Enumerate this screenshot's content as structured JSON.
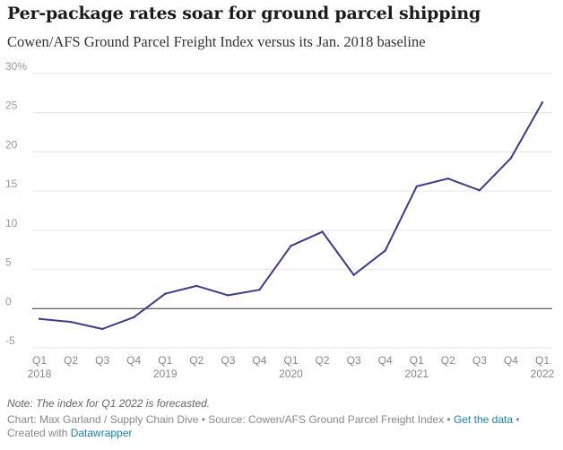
{
  "header": {
    "title": "Per-package rates soar for ground parcel shipping",
    "subtitle": "Cowen/AFS Ground Parcel Freight Index versus its Jan. 2018 baseline"
  },
  "chart_data": {
    "type": "line",
    "title": "Per-package rates soar for ground parcel shipping",
    "subtitle": "Cowen/AFS Ground Parcel Freight Index versus its Jan. 2018 baseline",
    "xlabel": "",
    "ylabel": "",
    "categories": [
      "Q1 2018",
      "Q2 2018",
      "Q3 2018",
      "Q4 2018",
      "Q1 2019",
      "Q2 2019",
      "Q3 2019",
      "Q4 2019",
      "Q1 2020",
      "Q2 2020",
      "Q3 2020",
      "Q4 2020",
      "Q1 2021",
      "Q2 2021",
      "Q3 2021",
      "Q4 2021",
      "Q1 2022"
    ],
    "series": [
      {
        "values": [
          -1.3,
          -1.7,
          -2.6,
          -1.1,
          1.9,
          2.9,
          1.7,
          2.4,
          8.0,
          9.8,
          4.3,
          7.4,
          15.6,
          16.6,
          15.1,
          19.2,
          26.3
        ]
      }
    ],
    "ylim": [
      -5,
      30
    ],
    "y_ticks": [
      -5,
      0,
      5,
      10,
      15,
      20,
      25,
      30
    ],
    "y_tick_labels": [
      "-5",
      "0",
      "5",
      "10",
      "15",
      "20",
      "25",
      "30%"
    ],
    "x_tick_quarters": [
      "Q1",
      "Q2",
      "Q3",
      "Q4",
      "Q1",
      "Q2",
      "Q3",
      "Q4",
      "Q1",
      "Q2",
      "Q3",
      "Q4",
      "Q1",
      "Q2",
      "Q3",
      "Q4",
      "Q1"
    ],
    "x_tick_years": [
      "2018",
      "",
      "",
      "",
      "2019",
      "",
      "",
      "",
      "2020",
      "",
      "",
      "",
      "2021",
      "",
      "",
      "",
      "2022"
    ],
    "grid": true,
    "line_color": "#3e3c85",
    "grid_color": "#e6e6e6",
    "zero_line_color": "#333333"
  },
  "note": "Note: The index for Q1 2022 is forecasted.",
  "footer": {
    "credit_text": "Chart: Max Garland / Supply Chain Dive • Source: Cowen/AFS Ground Parcel Freight Index • ",
    "get_data_label": "Get the data",
    "created_with_text": " • Created with ",
    "datawrapper_label": "Datawrapper"
  }
}
